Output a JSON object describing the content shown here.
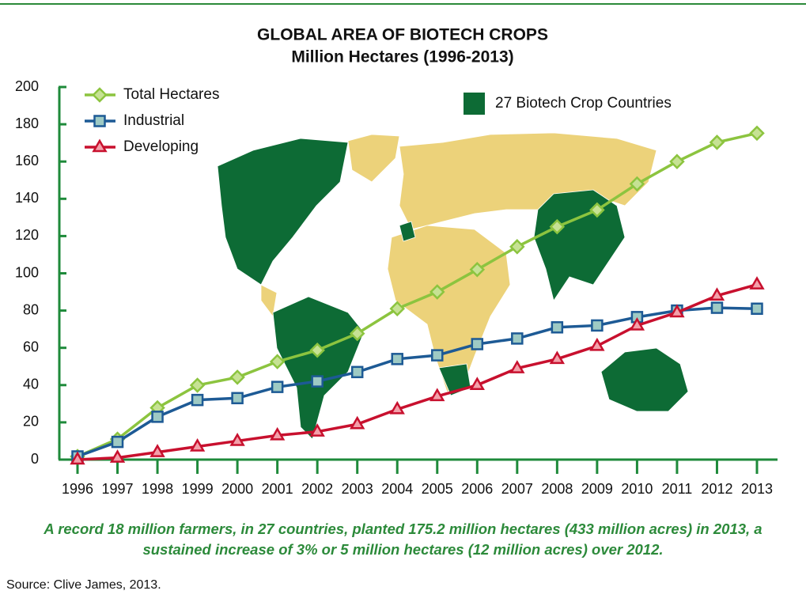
{
  "chart_data": {
    "type": "line",
    "title": "GLOBAL AREA OF BIOTECH CROPS",
    "subtitle": "Million Hectares (1996-2013)",
    "categories": [
      "1996",
      "1997",
      "1998",
      "1999",
      "2000",
      "2001",
      "2002",
      "2003",
      "2004",
      "2005",
      "2006",
      "2007",
      "2008",
      "2009",
      "2010",
      "2011",
      "2012",
      "2013"
    ],
    "series": [
      {
        "name": "Total Hectares",
        "color": "#8cc43f",
        "marker_fill": "#c6e294",
        "marker": "diamond",
        "values": [
          1.7,
          11,
          27.8,
          39.9,
          44.2,
          52.6,
          58.7,
          67.7,
          81,
          90,
          102,
          114.3,
          125,
          134,
          148,
          160,
          170.3,
          175.2
        ]
      },
      {
        "name": "Industrial",
        "color": "#1d5a95",
        "marker_fill": "#9ecac4",
        "marker": "square",
        "values": [
          1.7,
          9.5,
          23,
          32,
          33,
          39,
          42,
          47,
          54,
          56,
          62,
          65,
          71,
          72,
          76.5,
          80,
          81.5,
          81
        ]
      },
      {
        "name": "Developing",
        "color": "#c8102e",
        "marker_fill": "#f3a0aa",
        "marker": "triangle",
        "values": [
          0,
          1,
          4,
          7,
          10,
          13,
          15,
          19,
          27,
          34,
          40,
          49,
          54,
          61,
          72,
          79,
          88,
          94
        ]
      }
    ],
    "ylim": [
      0,
      200
    ],
    "yticks": [
      0,
      20,
      40,
      60,
      80,
      100,
      120,
      140,
      160,
      180,
      200
    ],
    "axis_color": "#1e8a3a",
    "map_legend": {
      "label": "27 Biotech Crop Countries",
      "color": "#0d6b35"
    },
    "caption": "A record 18 million farmers, in 27 countries, planted 175.2 million hectares (433 million acres) in 2013, a sustained increase of 3% or 5 million hectares (12 million acres) over 2012.",
    "source": "Source: Clive James, 2013."
  }
}
